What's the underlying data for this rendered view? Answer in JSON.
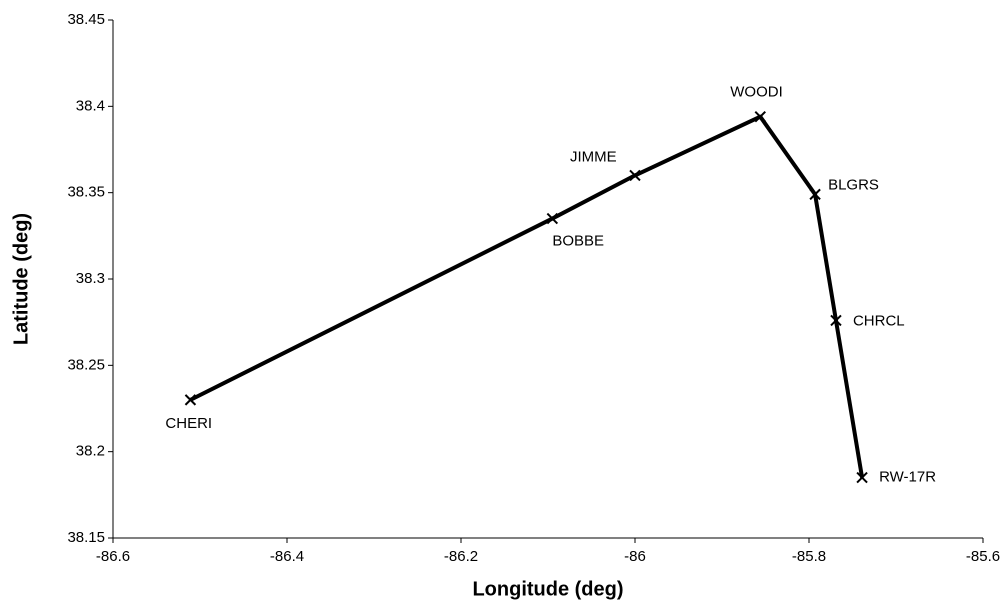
{
  "chart_data": {
    "type": "line",
    "xlabel": "Longitude (deg)",
    "ylabel": "Latitude (deg)",
    "x": [
      -86.511,
      -86.095,
      -86.0,
      -85.856,
      -85.793,
      -85.769,
      -85.739
    ],
    "values": [
      38.23,
      38.335,
      38.36,
      38.394,
      38.349,
      38.276,
      38.185
    ],
    "point_labels": [
      "CHERI",
      "BOBBE",
      "JIMME",
      "WOODI",
      "BLGRS",
      "CHRCL",
      "RW-17R"
    ],
    "color": "#000000",
    "xlim": [
      -86.6,
      -85.6
    ],
    "xticks": [
      -86.6,
      -86.4,
      -86.2,
      -86,
      -85.8,
      -85.6
    ],
    "ylim": [
      38.15,
      38.45
    ],
    "yticks": [
      38.15,
      38.2,
      38.25,
      38.3,
      38.35,
      38.4,
      38.45
    ],
    "grid": false
  }
}
